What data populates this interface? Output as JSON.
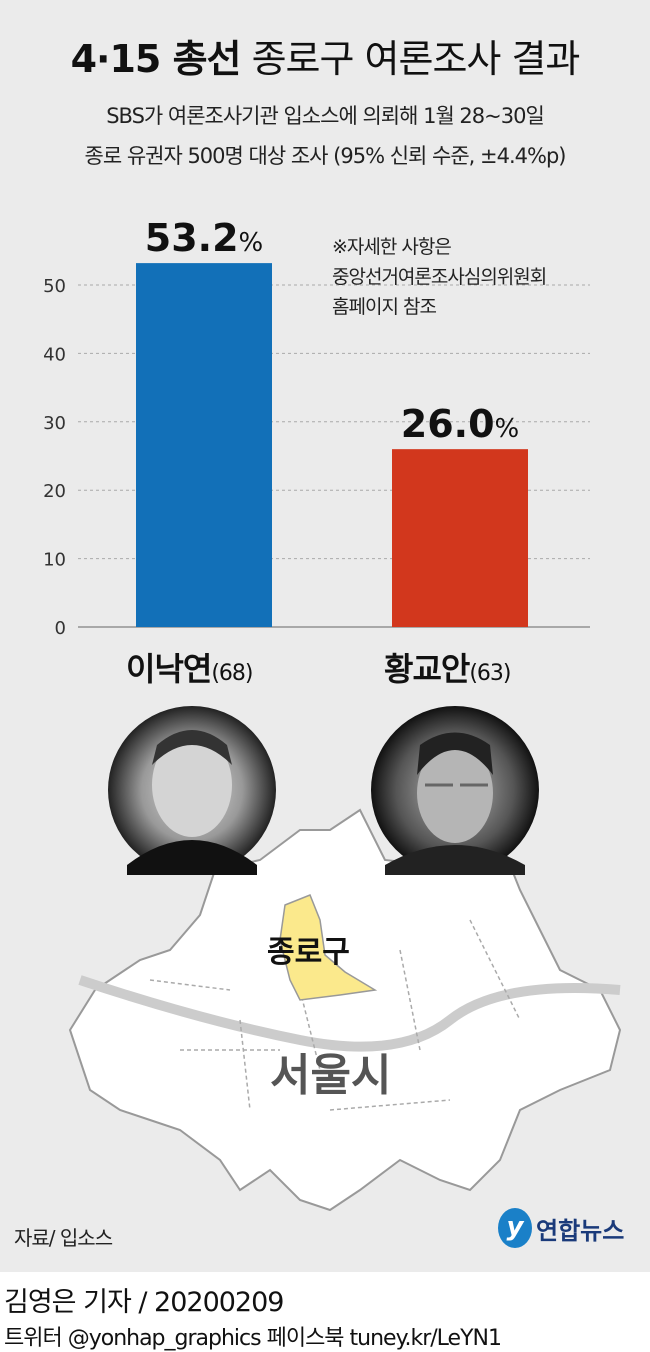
{
  "header": {
    "title_bold": "4·15 총선",
    "title_rest": " 종로구 여론조사 결과",
    "subtitle_line1": "SBS가 여론조사기관 입소스에 의뢰해 1월 28~30일",
    "subtitle_line2": "종로 유권자 500명 대상 조사 (95% 신뢰 수준, ±4.4%p)"
  },
  "note": [
    "※자세한 사항은",
    "중앙선거여론조사심의위원회",
    "홈페이지 참조"
  ],
  "chart_data": {
    "type": "bar",
    "categories": [
      "이낙연",
      "황교안"
    ],
    "ages": [
      "(68)",
      "(63)"
    ],
    "values": [
      53.2,
      26.0
    ],
    "value_labels": [
      "53.2%",
      "26.0%"
    ],
    "colors": [
      "#1270b8",
      "#d2371d"
    ],
    "ylim": [
      0,
      55
    ],
    "yticks": [
      "0",
      "10",
      "20",
      "30",
      "40",
      "50"
    ],
    "grid": true
  },
  "map": {
    "district_label": "종로구",
    "city_label": "서울시",
    "highlight_color": "#fbe98c"
  },
  "source": "자료/ 입소스",
  "logo": "연합뉴스",
  "footer": {
    "byline": "김영은 기자 / 20200209",
    "social": "트위터 @yonhap_graphics  페이스북 tuney.kr/LeYN1"
  }
}
